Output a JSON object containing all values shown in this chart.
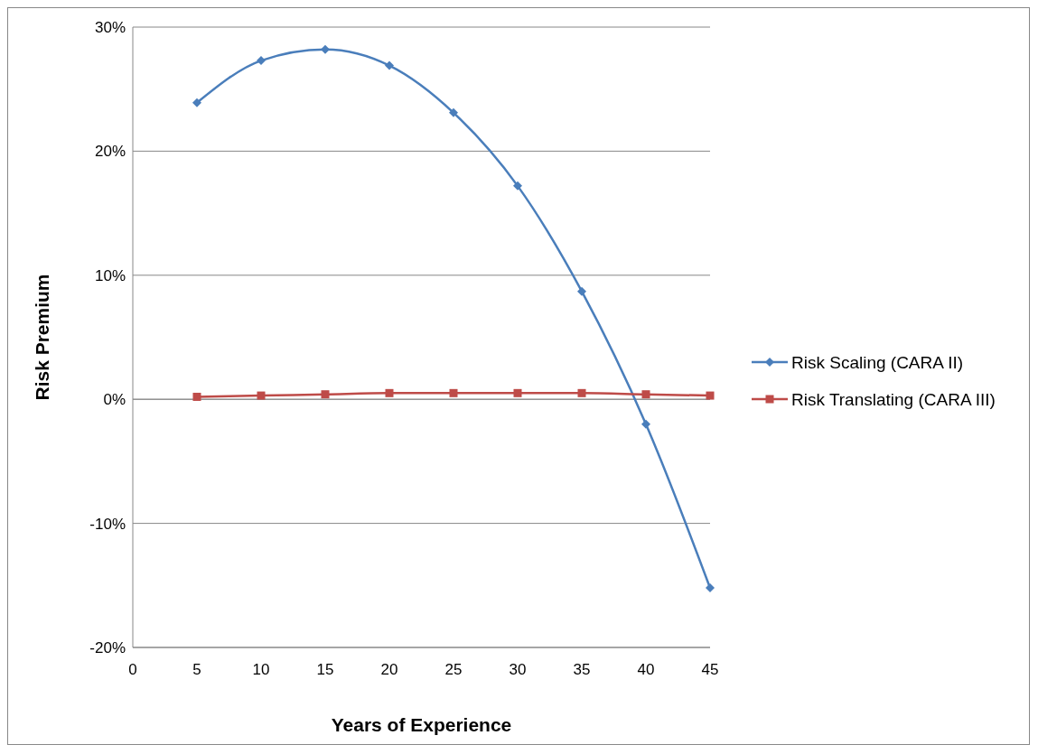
{
  "chart_data": {
    "type": "line",
    "xlabel": "Years of Experience",
    "ylabel": "Risk Premium",
    "x": [
      5,
      10,
      15,
      20,
      25,
      30,
      35,
      40,
      45
    ],
    "series": [
      {
        "name": "Risk Scaling (CARA II)",
        "color": "#4a7ebb",
        "marker": "diamond",
        "values": [
          23.9,
          27.3,
          28.2,
          26.9,
          23.1,
          17.2,
          8.7,
          -2.0,
          -15.2
        ]
      },
      {
        "name": "Risk Translating (CARA III)",
        "color": "#be4b48",
        "marker": "square",
        "values": [
          0.2,
          0.3,
          0.4,
          0.5,
          0.5,
          0.5,
          0.5,
          0.4,
          0.3
        ]
      }
    ],
    "xlim": [
      0,
      45
    ],
    "xticks": [
      0,
      5,
      10,
      15,
      20,
      25,
      30,
      35,
      40,
      45
    ],
    "ylim": [
      -20,
      30
    ],
    "yticks": [
      {
        "value": -20,
        "label": "-20%"
      },
      {
        "value": -10,
        "label": "-10%"
      },
      {
        "value": 0,
        "label": "0%"
      },
      {
        "value": 10,
        "label": "10%"
      },
      {
        "value": 20,
        "label": "20%"
      },
      {
        "value": 30,
        "label": "30%"
      }
    ],
    "grid": "y",
    "legend": "right",
    "line_style": "solid"
  }
}
